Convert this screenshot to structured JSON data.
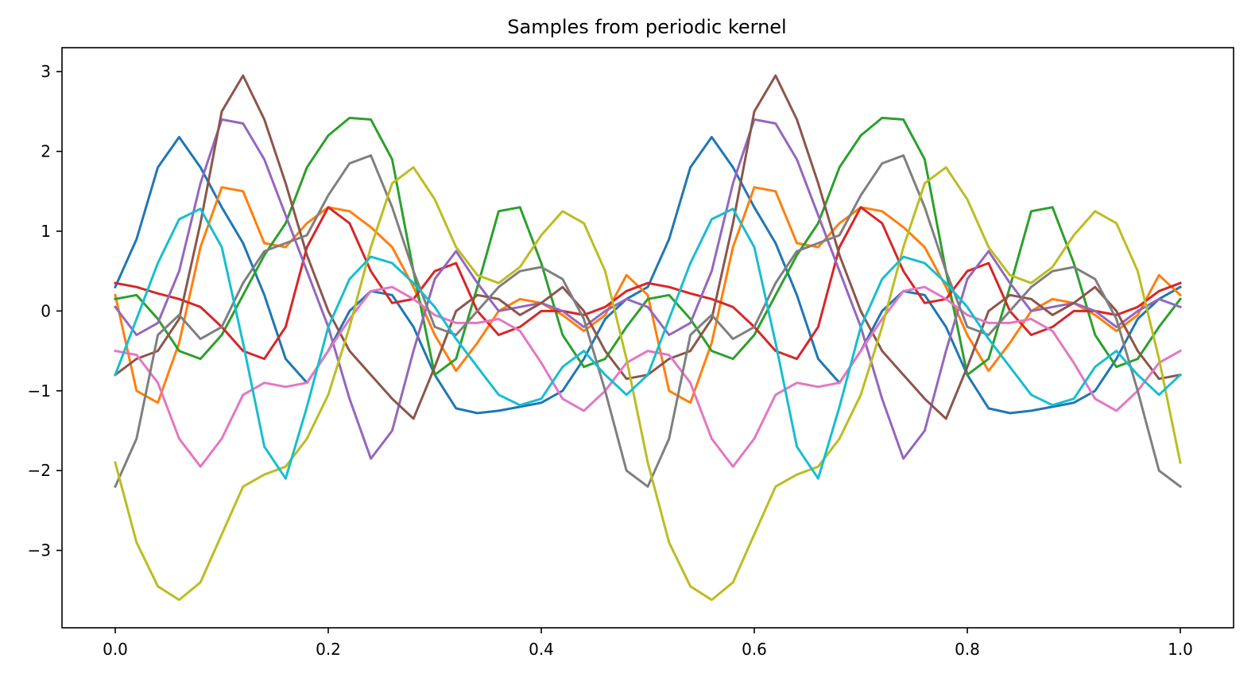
{
  "chart_data": {
    "type": "line",
    "title": "Samples from periodic kernel",
    "xlabel": "",
    "ylabel": "",
    "xlim": [
      -0.05,
      1.05
    ],
    "ylim": [
      -3.97,
      3.3
    ],
    "grid": false,
    "legend": "none",
    "x_ticks": [
      0.0,
      0.2,
      0.4,
      0.6,
      0.8,
      1.0
    ],
    "x_tick_labels": [
      "0.0",
      "0.2",
      "0.4",
      "0.6",
      "0.8",
      "1.0"
    ],
    "y_ticks": [
      -3,
      -2,
      -1,
      0,
      1,
      2,
      3
    ],
    "y_tick_labels": [
      "−3",
      "−2",
      "−1",
      "0",
      "1",
      "2",
      "3"
    ],
    "x": [
      0.0,
      0.02,
      0.04,
      0.06,
      0.08,
      0.1,
      0.12,
      0.14,
      0.16,
      0.18,
      0.2,
      0.22,
      0.24,
      0.26,
      0.28,
      0.3,
      0.32,
      0.34,
      0.36,
      0.38,
      0.4,
      0.42,
      0.44,
      0.46,
      0.48,
      0.5,
      0.52,
      0.54,
      0.56,
      0.58,
      0.6,
      0.62,
      0.64,
      0.66,
      0.68,
      0.7,
      0.72,
      0.74,
      0.76,
      0.78,
      0.8,
      0.82,
      0.84,
      0.86,
      0.88,
      0.9,
      0.92,
      0.94,
      0.96,
      0.98,
      1.0
    ],
    "series": [
      {
        "color": "#1f77b4",
        "values": [
          0.3,
          0.9,
          1.8,
          2.18,
          1.8,
          1.3,
          0.85,
          0.2,
          -0.6,
          -0.9,
          -0.5,
          0.0,
          0.25,
          0.2,
          -0.2,
          -0.8,
          -1.22,
          -1.28,
          -1.25,
          -1.2,
          -1.15,
          -1.0,
          -0.6,
          -0.1,
          0.15,
          0.3,
          0.9,
          1.8,
          2.18,
          1.8,
          1.3,
          0.85,
          0.2,
          -0.6,
          -0.9,
          -0.5,
          0.0,
          0.25,
          0.2,
          -0.2,
          -0.8,
          -1.22,
          -1.28,
          -1.25,
          -1.2,
          -1.15,
          -1.0,
          -0.6,
          -0.1,
          0.15,
          0.3
        ]
      },
      {
        "color": "#ff7f0e",
        "values": [
          0.2,
          -1.0,
          -1.15,
          -0.4,
          0.8,
          1.55,
          1.5,
          0.85,
          0.8,
          1.1,
          1.3,
          1.25,
          1.05,
          0.8,
          0.3,
          -0.3,
          -0.75,
          -0.4,
          0.0,
          0.15,
          0.1,
          -0.05,
          -0.25,
          -0.05,
          0.45,
          0.2,
          -1.0,
          -1.15,
          -0.4,
          0.8,
          1.55,
          1.5,
          0.85,
          0.8,
          1.1,
          1.3,
          1.25,
          1.05,
          0.8,
          0.3,
          -0.3,
          -0.75,
          -0.4,
          0.0,
          0.15,
          0.1,
          -0.05,
          -0.25,
          -0.05,
          0.45,
          0.2
        ]
      },
      {
        "color": "#2ca02c",
        "values": [
          0.15,
          0.2,
          -0.1,
          -0.5,
          -0.6,
          -0.3,
          0.2,
          0.7,
          1.1,
          1.8,
          2.2,
          2.42,
          2.4,
          1.9,
          0.5,
          -0.8,
          -0.6,
          0.3,
          1.25,
          1.3,
          0.6,
          -0.3,
          -0.7,
          -0.6,
          -0.2,
          0.15,
          0.2,
          -0.1,
          -0.5,
          -0.6,
          -0.3,
          0.2,
          0.7,
          1.1,
          1.8,
          2.2,
          2.42,
          2.4,
          1.9,
          0.5,
          -0.8,
          -0.6,
          0.3,
          1.25,
          1.3,
          0.6,
          -0.3,
          -0.7,
          -0.6,
          -0.2,
          0.15
        ]
      },
      {
        "color": "#d62728",
        "values": [
          0.35,
          0.3,
          0.22,
          0.15,
          0.05,
          -0.2,
          -0.5,
          -0.6,
          -0.2,
          0.8,
          1.3,
          1.1,
          0.5,
          0.1,
          0.15,
          0.5,
          0.6,
          0.0,
          -0.3,
          -0.2,
          0.0,
          0.0,
          -0.05,
          0.05,
          0.25,
          0.35,
          0.3,
          0.22,
          0.15,
          0.05,
          -0.2,
          -0.5,
          -0.6,
          -0.2,
          0.8,
          1.3,
          1.1,
          0.5,
          0.1,
          0.15,
          0.5,
          0.6,
          0.0,
          -0.3,
          -0.2,
          0.0,
          0.0,
          -0.05,
          0.05,
          0.25,
          0.35
        ]
      },
      {
        "color": "#9467bd",
        "values": [
          0.05,
          -0.3,
          -0.15,
          0.5,
          1.6,
          2.4,
          2.35,
          1.9,
          1.2,
          0.5,
          -0.2,
          -1.1,
          -1.85,
          -1.5,
          -0.5,
          0.4,
          0.75,
          0.35,
          0.0,
          0.05,
          0.1,
          0.0,
          -0.2,
          0.0,
          0.15,
          0.05,
          -0.3,
          -0.15,
          0.5,
          1.6,
          2.4,
          2.35,
          1.9,
          1.2,
          0.5,
          -0.2,
          -1.1,
          -1.85,
          -1.5,
          -0.5,
          0.4,
          0.75,
          0.35,
          0.0,
          0.05,
          0.1,
          0.0,
          -0.2,
          0.0,
          0.15,
          0.05
        ]
      },
      {
        "color": "#8c564b",
        "values": [
          -0.8,
          -0.6,
          -0.5,
          -0.1,
          1.1,
          2.5,
          2.95,
          2.4,
          1.6,
          0.7,
          0.0,
          -0.5,
          -0.8,
          -1.1,
          -1.35,
          -0.7,
          0.0,
          0.2,
          0.15,
          -0.05,
          0.1,
          0.3,
          0.0,
          -0.5,
          -0.85,
          -0.8,
          -0.6,
          -0.5,
          -0.1,
          1.1,
          2.5,
          2.95,
          2.4,
          1.6,
          0.7,
          0.0,
          -0.5,
          -0.8,
          -1.1,
          -1.35,
          -0.7,
          0.0,
          0.2,
          0.15,
          -0.05,
          0.1,
          0.3,
          0.0,
          -0.5,
          -0.85,
          -0.8
        ]
      },
      {
        "color": "#e377c2",
        "values": [
          -0.5,
          -0.55,
          -0.9,
          -1.6,
          -1.95,
          -1.6,
          -1.05,
          -0.9,
          -0.95,
          -0.9,
          -0.5,
          -0.1,
          0.25,
          0.3,
          0.15,
          -0.05,
          -0.15,
          -0.15,
          -0.1,
          -0.25,
          -0.65,
          -1.1,
          -1.25,
          -1.0,
          -0.65,
          -0.5,
          -0.55,
          -0.9,
          -1.6,
          -1.95,
          -1.6,
          -1.05,
          -0.9,
          -0.95,
          -0.9,
          -0.5,
          -0.1,
          0.25,
          0.3,
          0.15,
          -0.05,
          -0.15,
          -0.15,
          -0.1,
          -0.25,
          -0.65,
          -1.1,
          -1.25,
          -1.0,
          -0.65,
          -0.5
        ]
      },
      {
        "color": "#7f7f7f",
        "values": [
          -2.2,
          -1.6,
          -0.3,
          -0.05,
          -0.35,
          -0.2,
          0.35,
          0.75,
          0.85,
          0.95,
          1.45,
          1.85,
          1.95,
          1.3,
          0.5,
          -0.2,
          -0.3,
          0.0,
          0.3,
          0.5,
          0.55,
          0.4,
          -0.1,
          -1.0,
          -2.0,
          -2.2,
          -1.6,
          -0.3,
          -0.05,
          -0.35,
          -0.2,
          0.35,
          0.75,
          0.85,
          0.95,
          1.45,
          1.85,
          1.95,
          1.3,
          0.5,
          -0.2,
          -0.3,
          0.0,
          0.3,
          0.5,
          0.55,
          0.4,
          -0.1,
          -1.0,
          -2.0,
          -2.2
        ]
      },
      {
        "color": "#bcbd22",
        "values": [
          -1.9,
          -2.9,
          -3.45,
          -3.62,
          -3.4,
          -2.8,
          -2.2,
          -2.05,
          -1.95,
          -1.6,
          -1.05,
          -0.2,
          0.8,
          1.6,
          1.8,
          1.4,
          0.8,
          0.45,
          0.35,
          0.55,
          0.95,
          1.25,
          1.1,
          0.5,
          -0.6,
          -1.9,
          -2.9,
          -3.45,
          -3.62,
          -3.4,
          -2.8,
          -2.2,
          -2.05,
          -1.95,
          -1.6,
          -1.05,
          -0.2,
          0.8,
          1.6,
          1.8,
          1.4,
          0.8,
          0.45,
          0.35,
          0.55,
          0.95,
          1.25,
          1.1,
          0.5,
          -0.6,
          -1.9
        ]
      },
      {
        "color": "#17becf",
        "values": [
          -0.8,
          -0.1,
          0.6,
          1.15,
          1.28,
          0.8,
          -0.4,
          -1.7,
          -2.1,
          -1.2,
          -0.2,
          0.4,
          0.68,
          0.6,
          0.35,
          0.05,
          -0.35,
          -0.7,
          -1.05,
          -1.18,
          -1.1,
          -0.7,
          -0.5,
          -0.8,
          -1.05,
          -0.8,
          -0.1,
          0.6,
          1.15,
          1.28,
          0.8,
          -0.4,
          -1.7,
          -2.1,
          -1.2,
          -0.2,
          0.4,
          0.68,
          0.6,
          0.35,
          0.05,
          -0.35,
          -0.7,
          -1.05,
          -1.18,
          -1.1,
          -0.7,
          -0.5,
          -0.8,
          -1.05,
          -0.8
        ]
      }
    ]
  }
}
